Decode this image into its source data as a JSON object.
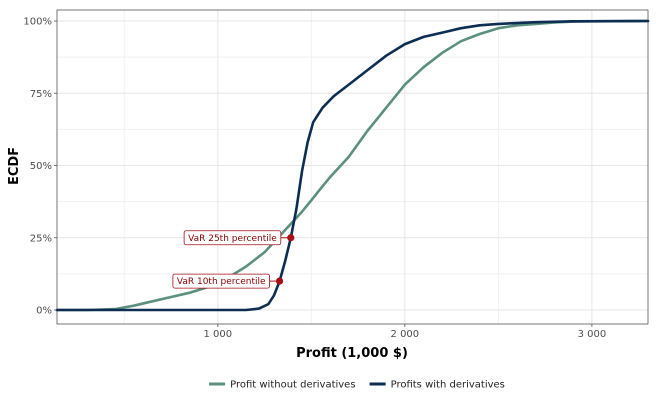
{
  "chart_data": {
    "type": "line",
    "xlabel": "Profit (1,000 $)",
    "ylabel": "ECDF",
    "xlim": [
      140,
      3300
    ],
    "ylim": [
      0,
      1
    ],
    "x_ticks": [
      1000,
      2000,
      3000
    ],
    "x_tick_labels": [
      "1 000",
      "2 000",
      "3 000"
    ],
    "y_ticks": [
      0,
      0.25,
      0.5,
      0.75,
      1
    ],
    "y_tick_labels": [
      "0%",
      "25%",
      "50%",
      "75%",
      "100%"
    ],
    "grid": true,
    "legend_position": "bottom",
    "series": [
      {
        "name": "Profit without derivatives",
        "color": "#5b8f7e",
        "points": [
          [
            140,
            0
          ],
          [
            300,
            0
          ],
          [
            450,
            0.003
          ],
          [
            550,
            0.015
          ],
          [
            650,
            0.03
          ],
          [
            750,
            0.045
          ],
          [
            850,
            0.06
          ],
          [
            950,
            0.08
          ],
          [
            1050,
            0.11
          ],
          [
            1150,
            0.15
          ],
          [
            1250,
            0.2
          ],
          [
            1350,
            0.27
          ],
          [
            1450,
            0.34
          ],
          [
            1500,
            0.38
          ],
          [
            1550,
            0.42
          ],
          [
            1600,
            0.46
          ],
          [
            1700,
            0.53
          ],
          [
            1800,
            0.62
          ],
          [
            1900,
            0.7
          ],
          [
            2000,
            0.78
          ],
          [
            2100,
            0.84
          ],
          [
            2200,
            0.89
          ],
          [
            2300,
            0.93
          ],
          [
            2400,
            0.955
          ],
          [
            2500,
            0.975
          ],
          [
            2600,
            0.985
          ],
          [
            2700,
            0.99
          ],
          [
            2800,
            0.995
          ],
          [
            2900,
            0.998
          ],
          [
            3000,
            0.999
          ],
          [
            3300,
            1
          ]
        ]
      },
      {
        "name": "Profits with derivatives",
        "color": "#0d2e52",
        "points": [
          [
            140,
            0
          ],
          [
            1150,
            0
          ],
          [
            1220,
            0.005
          ],
          [
            1270,
            0.02
          ],
          [
            1300,
            0.05
          ],
          [
            1330,
            0.1
          ],
          [
            1360,
            0.17
          ],
          [
            1390,
            0.25
          ],
          [
            1420,
            0.35
          ],
          [
            1450,
            0.48
          ],
          [
            1480,
            0.58
          ],
          [
            1510,
            0.65
          ],
          [
            1560,
            0.7
          ],
          [
            1620,
            0.74
          ],
          [
            1700,
            0.78
          ],
          [
            1800,
            0.83
          ],
          [
            1900,
            0.88
          ],
          [
            2000,
            0.92
          ],
          [
            2100,
            0.945
          ],
          [
            2200,
            0.96
          ],
          [
            2300,
            0.975
          ],
          [
            2400,
            0.985
          ],
          [
            2500,
            0.99
          ],
          [
            2700,
            0.996
          ],
          [
            2900,
            0.999
          ],
          [
            3300,
            1
          ]
        ]
      }
    ],
    "annotations": [
      {
        "label": "VaR 25th percentile",
        "x": 1390,
        "y": 0.25,
        "color": "#a50f15"
      },
      {
        "label": "VaR 10th percentile",
        "x": 1330,
        "y": 0.1,
        "color": "#a50f15"
      }
    ]
  }
}
